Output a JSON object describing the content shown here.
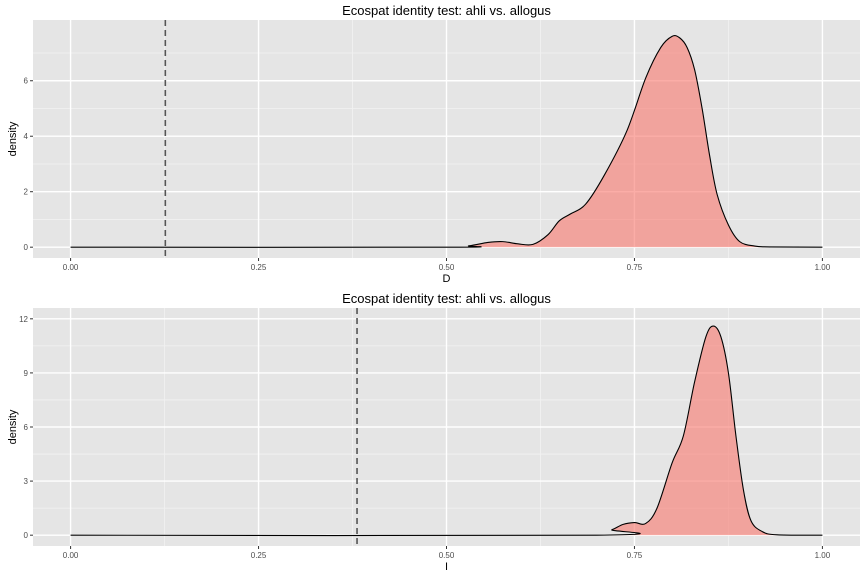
{
  "chart_data": [
    {
      "type": "area",
      "title": "Ecospat identity test: ahli vs. allogus",
      "xlabel": "D",
      "ylabel": "density",
      "xlim": [
        0,
        1
      ],
      "ylim": [
        0,
        7.8
      ],
      "x_ticks": [
        0,
        0.25,
        0.5,
        0.75,
        1
      ],
      "x_tick_labels": [
        "0.00",
        "0.25",
        "0.50",
        "0.75",
        "1.00"
      ],
      "y_ticks": [
        0,
        2,
        4,
        6
      ],
      "y_tick_labels": [
        "0",
        "2",
        "4",
        "6"
      ],
      "grid": true,
      "observed_value": 0.126,
      "density": {
        "x": [
          0,
          0.5,
          0.53,
          0.555,
          0.575,
          0.595,
          0.615,
          0.635,
          0.65,
          0.665,
          0.685,
          0.71,
          0.74,
          0.765,
          0.785,
          0.8,
          0.81,
          0.82,
          0.83,
          0.84,
          0.85,
          0.86,
          0.875,
          0.89,
          0.91,
          0.93,
          1
        ],
        "y": [
          0,
          0,
          0.05,
          0.17,
          0.2,
          0.12,
          0.1,
          0.45,
          0.95,
          1.2,
          1.55,
          2.6,
          4.2,
          6.1,
          7.2,
          7.6,
          7.55,
          7.2,
          6.4,
          5.0,
          3.3,
          1.9,
          0.8,
          0.2,
          0.04,
          0.01,
          0
        ]
      },
      "fill_color": "#f8766d",
      "line_color": "#000000",
      "vline_color": "#555555"
    },
    {
      "type": "area",
      "title": "Ecospat identity test: ahli vs. allogus",
      "xlabel": "I",
      "ylabel": "density",
      "xlim": [
        0,
        1
      ],
      "ylim": [
        0,
        12
      ],
      "x_ticks": [
        0,
        0.25,
        0.5,
        0.75,
        1
      ],
      "x_tick_labels": [
        "0.00",
        "0.25",
        "0.50",
        "0.75",
        "1.00"
      ],
      "y_ticks": [
        0,
        3,
        6,
        9,
        12
      ],
      "y_tick_labels": [
        "0",
        "3",
        "6",
        "9",
        "12"
      ],
      "grid": true,
      "observed_value": 0.381,
      "density": {
        "x": [
          0,
          0.7,
          0.72,
          0.735,
          0.75,
          0.765,
          0.78,
          0.8,
          0.815,
          0.83,
          0.845,
          0.855,
          0.865,
          0.875,
          0.885,
          0.895,
          0.905,
          0.92,
          0.94,
          1
        ],
        "y": [
          0,
          0,
          0.3,
          0.6,
          0.7,
          0.65,
          1.5,
          4.0,
          5.5,
          8.5,
          11.0,
          11.6,
          11.0,
          9.0,
          5.5,
          2.5,
          0.8,
          0.2,
          0.02,
          0
        ]
      },
      "fill_color": "#f8766d",
      "line_color": "#000000",
      "vline_color": "#555555"
    }
  ]
}
